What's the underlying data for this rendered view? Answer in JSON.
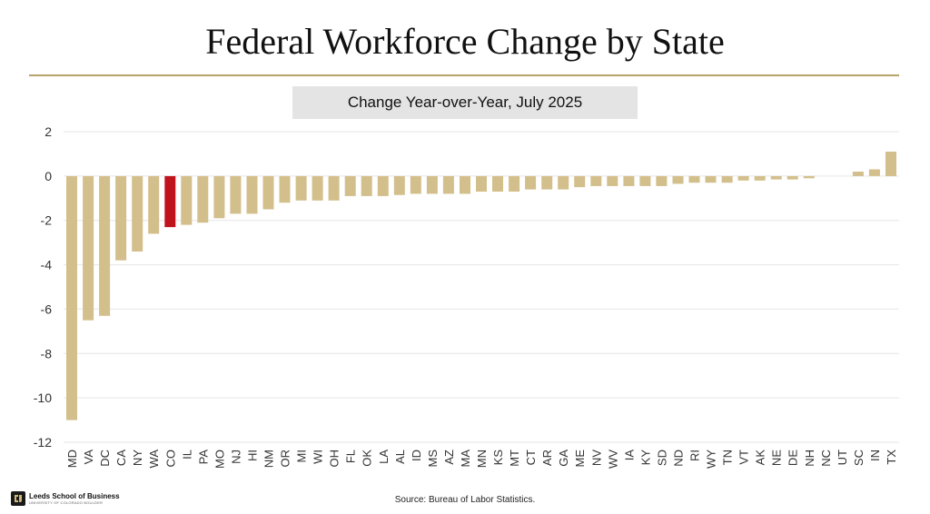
{
  "title": "Federal Workforce Change by State",
  "logo": {
    "name": "Leeds School of Business",
    "sub": "UNIVERSITY OF COLORADO BOULDER"
  },
  "source": "Source: Bureau of Labor Statistics.",
  "colors": {
    "bar": "#d3bf8b",
    "highlight": "#c0141c",
    "grid": "#e6e6e6",
    "rule": "#b8a36a"
  },
  "chart_data": {
    "type": "bar",
    "title": "Change Year-over-Year, July 2025",
    "xlabel": "",
    "ylabel": "",
    "ylim": [
      -12,
      2
    ],
    "yticks": [
      2,
      0,
      -2,
      -4,
      -6,
      -8,
      -10,
      -12
    ],
    "grid": true,
    "highlight": "CO",
    "categories": [
      "MD",
      "VA",
      "DC",
      "CA",
      "NY",
      "WA",
      "CO",
      "IL",
      "PA",
      "MO",
      "NJ",
      "HI",
      "NM",
      "OR",
      "MI",
      "WI",
      "OH",
      "FL",
      "OK",
      "LA",
      "AL",
      "ID",
      "MS",
      "AZ",
      "MA",
      "MN",
      "KS",
      "MT",
      "CT",
      "AR",
      "GA",
      "ME",
      "NV",
      "WV",
      "IA",
      "KY",
      "SD",
      "ND",
      "RI",
      "WY",
      "TN",
      "VT",
      "AK",
      "NE",
      "DE",
      "NH",
      "NC",
      "UT",
      "SC",
      "IN",
      "TX"
    ],
    "values": [
      -11.0,
      -6.5,
      -6.3,
      -3.8,
      -3.4,
      -2.6,
      -2.3,
      -2.2,
      -2.1,
      -1.9,
      -1.7,
      -1.7,
      -1.5,
      -1.2,
      -1.1,
      -1.1,
      -1.1,
      -0.9,
      -0.9,
      -0.9,
      -0.85,
      -0.8,
      -0.8,
      -0.8,
      -0.8,
      -0.7,
      -0.7,
      -0.7,
      -0.6,
      -0.6,
      -0.6,
      -0.5,
      -0.45,
      -0.45,
      -0.45,
      -0.45,
      -0.45,
      -0.35,
      -0.3,
      -0.3,
      -0.3,
      -0.2,
      -0.2,
      -0.15,
      -0.15,
      -0.1,
      0.0,
      0.0,
      0.2,
      0.3,
      1.1
    ]
  }
}
